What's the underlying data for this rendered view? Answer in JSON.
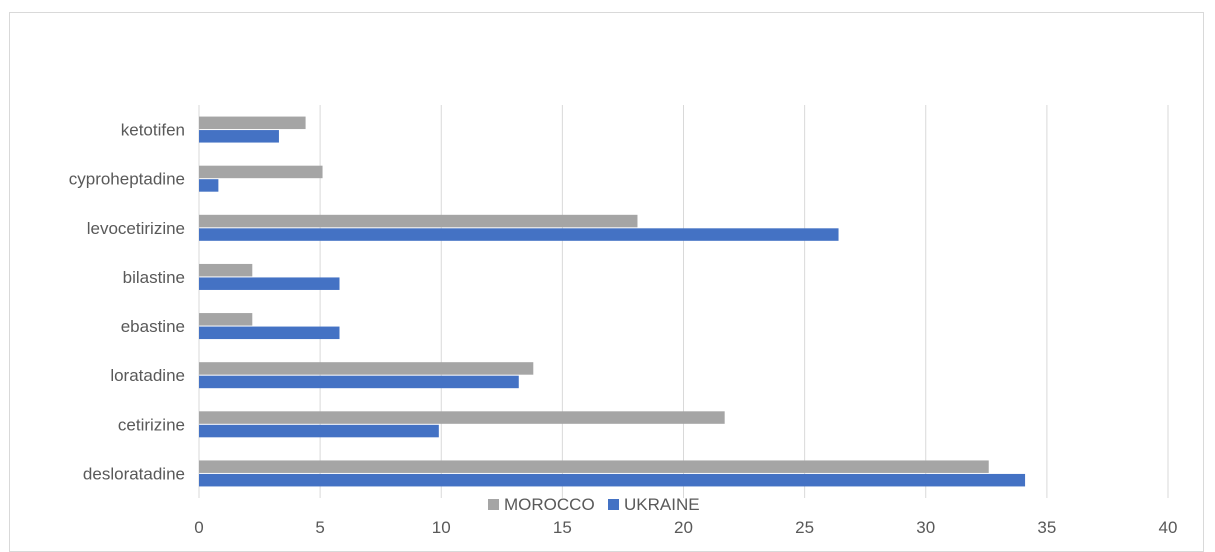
{
  "chart_data": {
    "type": "bar",
    "orientation": "horizontal",
    "title": "",
    "xlabel": "",
    "ylabel": "",
    "categories": [
      "desloratadine",
      "cetirizine",
      "loratadine",
      "ebastine",
      "bilastine",
      "levocetirizine",
      "cyproheptadine",
      "ketotifen"
    ],
    "series": [
      {
        "name": "MOROCCO",
        "color": "#a5a5a5",
        "values": [
          32.6,
          21.7,
          13.8,
          2.2,
          2.2,
          18.1,
          5.1,
          4.4
        ]
      },
      {
        "name": "UKRAINE",
        "color": "#4472c4",
        "values": [
          34.1,
          9.9,
          13.2,
          5.8,
          5.8,
          26.4,
          0.8,
          3.3
        ]
      }
    ],
    "xlim": [
      0,
      40
    ],
    "xticks": [
      "0",
      "5",
      "10",
      "15",
      "20",
      "25",
      "30",
      "35",
      "40"
    ],
    "grid": "vertical",
    "legend_position": "bottom"
  }
}
